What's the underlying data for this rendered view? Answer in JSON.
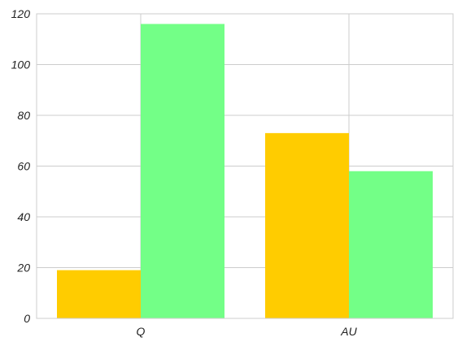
{
  "chart_data": {
    "type": "bar",
    "title": "",
    "xlabel": "",
    "ylabel": "",
    "categories": [
      "Q",
      "AU"
    ],
    "series": [
      {
        "values": [
          19,
          73
        ],
        "color": "#ffcc00"
      },
      {
        "values": [
          116,
          58
        ],
        "color": "#73ff87"
      }
    ],
    "ylim": [
      0,
      120
    ],
    "yticks": [
      0,
      20,
      40,
      60,
      80,
      100,
      120
    ],
    "grid": true,
    "legend": "none"
  }
}
